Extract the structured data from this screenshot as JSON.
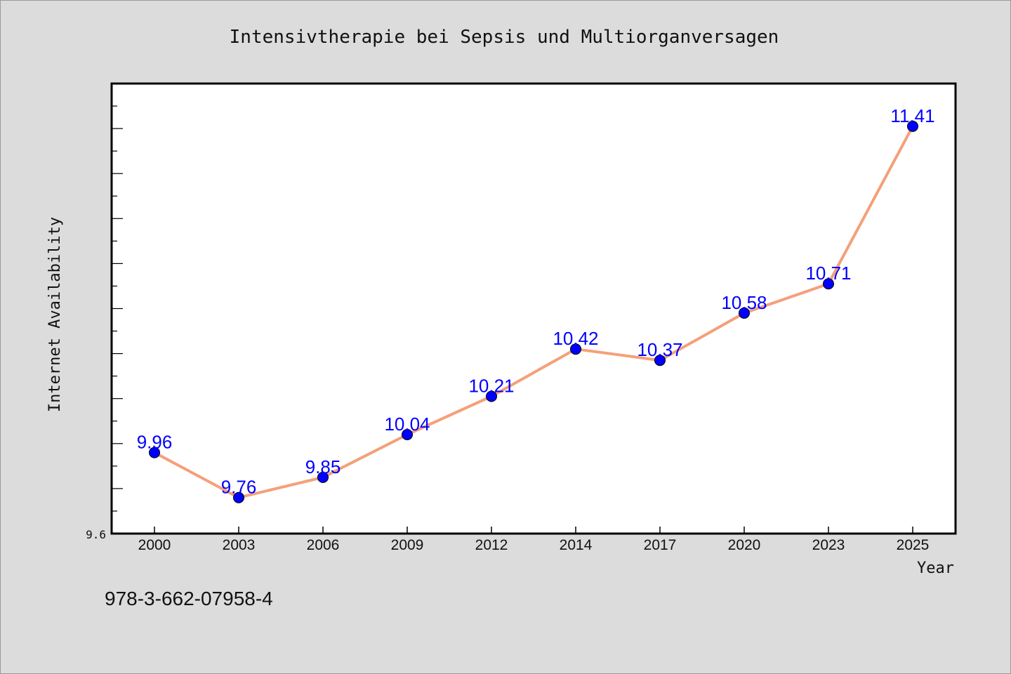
{
  "chart_data": {
    "type": "line",
    "title": "Intensivtherapie bei Sepsis und Multiorganversagen",
    "xlabel": "Year",
    "ylabel": "Internet Availability",
    "categories": [
      "2000",
      "2003",
      "2006",
      "2009",
      "2012",
      "2014",
      "2017",
      "2020",
      "2023",
      "2025"
    ],
    "series": [
      {
        "values": [
          9.96,
          9.76,
          9.85,
          10.04,
          10.21,
          10.42,
          10.37,
          10.58,
          10.71,
          11.41
        ],
        "data_labels": [
          "9.96",
          "9.76",
          "9.85",
          "10.04",
          "10.21",
          "10.42",
          "10.37",
          "10.58",
          "10.71",
          "11.41"
        ]
      }
    ],
    "ylim": [
      9.6,
      11.6
    ],
    "y_tick_labels": [
      "9.6"
    ],
    "grid": false,
    "line_color": "#f4a07a",
    "marker_color": "#0000ff",
    "label_color": "#0000ff"
  },
  "footer": {
    "isbn": "978-3-662-07958-4"
  }
}
